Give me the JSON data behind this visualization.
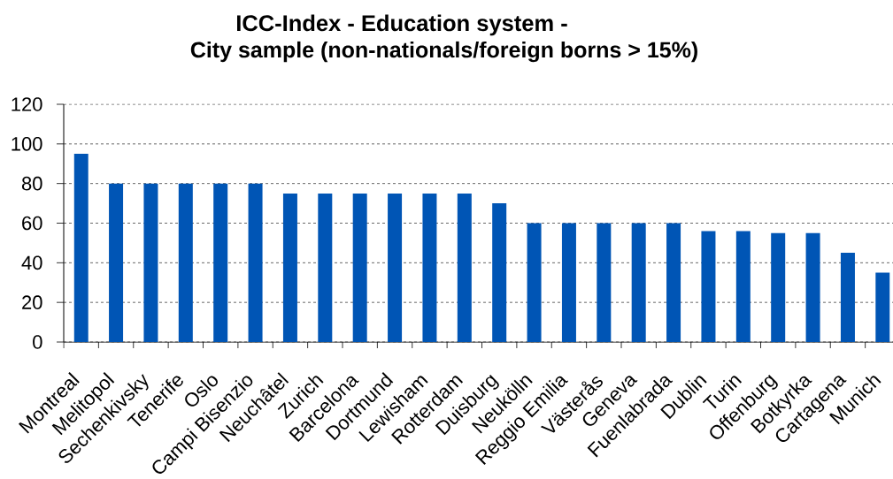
{
  "chart_data": {
    "type": "bar",
    "title": "ICC-Index - Education system -",
    "subtitle": "City sample (non-nationals/foreign borns > 15%)",
    "categories": [
      "Montreal",
      "Melitopol",
      "Sechenkivsky",
      "Tenerife",
      "Oslo",
      "Campi Bisenzio",
      "Neuchâtel",
      "Zurich",
      "Barcelona",
      "Dortmund",
      "Lewisham",
      "Rotterdam",
      "Duisburg",
      "Neukölln",
      "Reggio Emilia",
      "Västerås",
      "Geneva",
      "Fuenlabrada",
      "Dublin",
      "Turin",
      "Offenburg",
      "Botkyrka",
      "Cartagena",
      "Munich"
    ],
    "values": [
      95,
      80,
      80,
      80,
      80,
      80,
      75,
      75,
      75,
      75,
      75,
      75,
      70,
      60,
      60,
      60,
      60,
      60,
      56,
      56,
      55,
      55,
      45,
      35
    ],
    "color": "#0055b5",
    "ylim": [
      0,
      120
    ],
    "yticks": [
      0,
      20,
      40,
      60,
      80,
      100,
      120
    ],
    "grid": "y"
  }
}
